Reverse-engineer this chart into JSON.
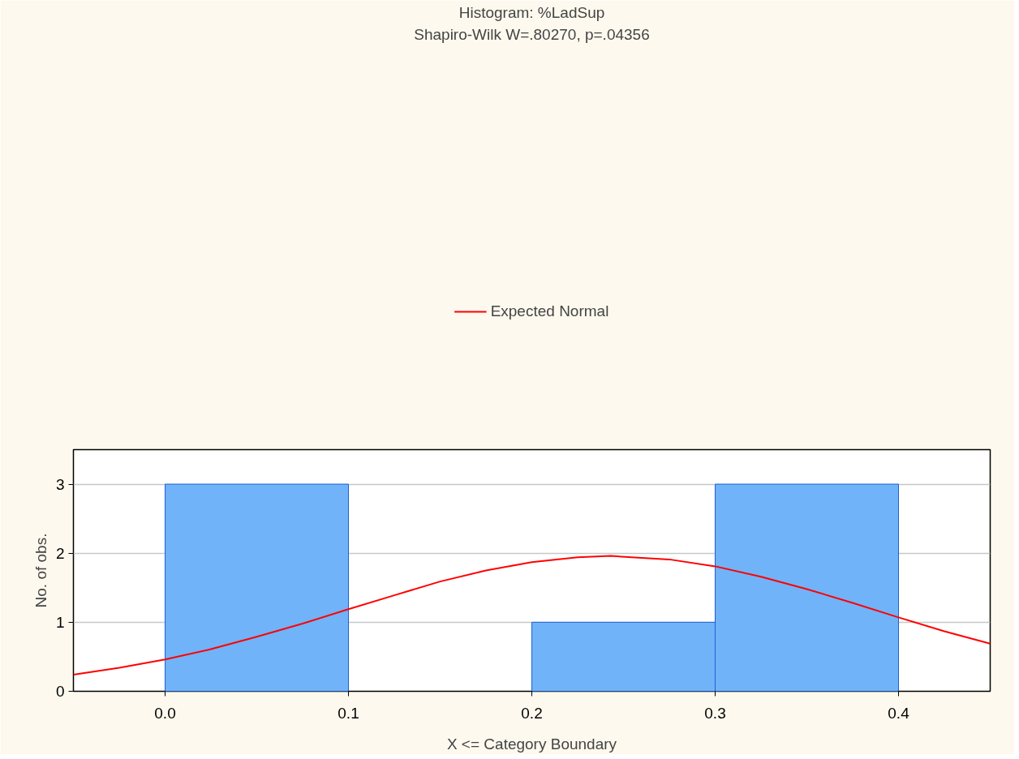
{
  "chart_data": {
    "type": "histogram",
    "title": "Histogram: %LadSup",
    "subtitle": "Shapiro-Wilk W=.80270, p=.04356",
    "xlabel": "X <= Category Boundary",
    "ylabel": "No. of obs.",
    "bins": [
      0.0,
      0.1,
      0.2,
      0.3,
      0.4
    ],
    "values": [
      3,
      0,
      1,
      3
    ],
    "color": "#70b3f8",
    "series": [
      {
        "type": "line",
        "name": "Expected Normal",
        "color": "#ff0000",
        "x": [
          -0.05,
          -0.025,
          0,
          0.025,
          0.05,
          0.075,
          0.1,
          0.125,
          0.15,
          0.175,
          0.2,
          0.225,
          0.243,
          0.275,
          0.3,
          0.325,
          0.35,
          0.375,
          0.4,
          0.425,
          0.45
        ],
        "values": [
          0.24,
          0.34,
          0.46,
          0.61,
          0.79,
          0.98,
          1.19,
          1.39,
          1.59,
          1.75,
          1.87,
          1.94,
          1.96,
          1.91,
          1.81,
          1.66,
          1.48,
          1.28,
          1.07,
          0.87,
          0.69
        ]
      }
    ],
    "xlim": [
      -0.05,
      0.45
    ],
    "ylim": [
      0,
      3.5
    ],
    "xticks": [
      {
        "value": 0,
        "label": "0.0"
      },
      0.1,
      0.2,
      0.3,
      0.4
    ],
    "yticks": [
      0,
      1,
      2,
      3
    ],
    "grid": "y",
    "legend": "top"
  }
}
